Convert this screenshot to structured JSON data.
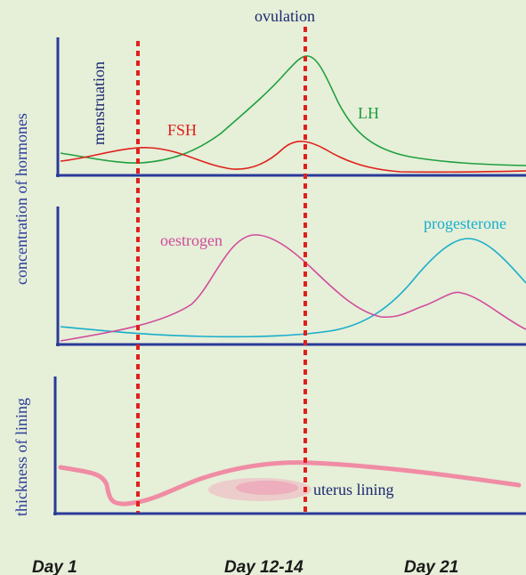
{
  "labels": {
    "ovulation": "ovulation",
    "menstruation": "menstruation",
    "y_hormones": "concentration of hormones",
    "y_lining": "thickness of lining",
    "fsh": "FSH",
    "lh": "LH",
    "oestrogen": "oestrogen",
    "progesterone": "progesterone",
    "uterus_lining": "uterus lining"
  },
  "days": {
    "day1": "Day 1",
    "day12": "Day 12-14",
    "day21": "Day 21"
  },
  "colors": {
    "background": "#e6efd8",
    "axis": "#2a3a9a",
    "marker": "#e0201c",
    "fsh": "#e0201c",
    "lh": "#1fa040",
    "oestrogen": "#d04c9c",
    "progesterone": "#18aecb",
    "lining": "#f08ca4",
    "text_dark": "#1a2870"
  }
}
